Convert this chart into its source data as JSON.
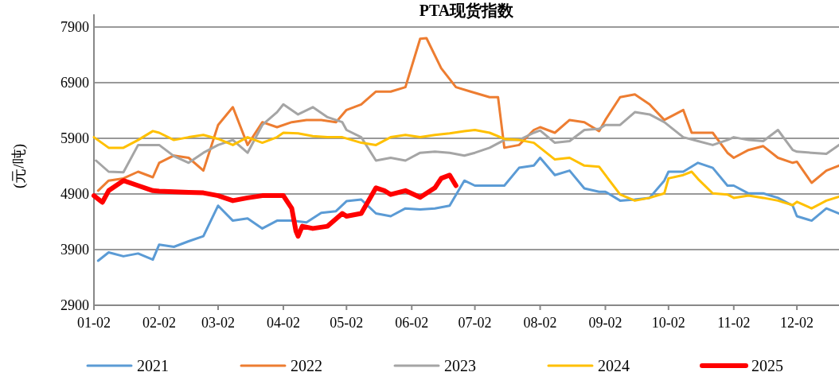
{
  "chart_data": {
    "type": "line",
    "title": "PTA现货指数",
    "ylabel": "(元/吨)",
    "xlim": [
      "--01-02",
      "--12-22"
    ],
    "xticks": [
      {
        "value": "--01-02",
        "label": "01-02"
      },
      {
        "value": "--02-02",
        "label": "02-02"
      },
      {
        "value": "--03-02",
        "label": "03-02"
      },
      {
        "value": "--04-02",
        "label": "04-02"
      },
      {
        "value": "--05-02",
        "label": "05-02"
      },
      {
        "value": "--06-02",
        "label": "06-02"
      },
      {
        "value": "--07-02",
        "label": "07-02"
      },
      {
        "value": "--08-02",
        "label": "08-02"
      },
      {
        "value": "--09-02",
        "label": "09-02"
      },
      {
        "value": "--10-02",
        "label": "10-02"
      },
      {
        "value": "--11-02",
        "label": "11-02"
      },
      {
        "value": "--12-02",
        "label": "12-02"
      }
    ],
    "ylim": [
      2900,
      7900
    ],
    "yticks": [
      2900,
      3900,
      4900,
      5900,
      6900,
      7900
    ],
    "grid": "y",
    "legend": "bottom",
    "marker": "none",
    "line_style": "solid",
    "series": [
      {
        "name": "2021",
        "color": "#5b9bd5",
        "x": [
          "--01-04",
          "--01-09",
          "--01-16",
          "--01-23",
          "--01-30",
          "--02-02",
          "--02-09",
          "--02-16",
          "--02-23",
          "--03-02",
          "--03-09",
          "--03-16",
          "--03-23",
          "--03-30",
          "--04-06",
          "--04-13",
          "--04-20",
          "--04-27",
          "--05-02",
          "--05-09",
          "--05-16",
          "--05-23",
          "--05-30",
          "--06-06",
          "--06-13",
          "--06-20",
          "--06-27",
          "--07-02",
          "--07-09",
          "--07-16",
          "--07-23",
          "--07-30",
          "--08-02",
          "--08-09",
          "--08-16",
          "--08-23",
          "--08-30",
          "--09-02",
          "--09-09",
          "--09-16",
          "--09-23",
          "--09-30",
          "--10-02",
          "--10-09",
          "--10-16",
          "--10-23",
          "--10-30",
          "--11-02",
          "--11-09",
          "--11-16",
          "--11-23",
          "--11-30",
          "--12-02",
          "--12-09",
          "--12-16",
          "--12-22"
        ],
        "values": [
          3700,
          3850,
          3780,
          3830,
          3720,
          3990,
          3950,
          4050,
          4140,
          4690,
          4420,
          4460,
          4280,
          4420,
          4420,
          4390,
          4560,
          4590,
          4770,
          4800,
          4550,
          4500,
          4640,
          4620,
          4640,
          4690,
          5140,
          5050,
          5050,
          5050,
          5370,
          5410,
          5550,
          5240,
          5320,
          5000,
          4940,
          4940,
          4780,
          4800,
          4830,
          5140,
          5300,
          5300,
          5460,
          5370,
          5050,
          5050,
          4910,
          4910,
          4830,
          4690,
          4500,
          4420,
          4640,
          4550
        ]
      },
      {
        "name": "2022",
        "color": "#ed7d31",
        "x": [
          "--01-04",
          "--01-09",
          "--01-16",
          "--01-23",
          "--01-30",
          "--02-02",
          "--02-09",
          "--02-16",
          "--02-23",
          "--03-02",
          "--03-09",
          "--03-16",
          "--03-23",
          "--03-30",
          "--04-06",
          "--04-13",
          "--04-20",
          "--04-27",
          "--05-02",
          "--05-09",
          "--05-16",
          "--05-23",
          "--05-30",
          "--06-06",
          "--06-09",
          "--06-16",
          "--06-23",
          "--06-30",
          "--07-09",
          "--07-13",
          "--07-16",
          "--07-23",
          "--07-30",
          "--08-02",
          "--08-09",
          "--08-16",
          "--08-23",
          "--08-30",
          "--09-02",
          "--09-09",
          "--09-16",
          "--09-23",
          "--09-30",
          "--10-09",
          "--10-13",
          "--10-16",
          "--10-23",
          "--10-30",
          "--11-02",
          "--11-09",
          "--11-16",
          "--11-23",
          "--11-30",
          "--12-02",
          "--12-09",
          "--12-16",
          "--12-22"
        ],
        "values": [
          4960,
          5140,
          5180,
          5300,
          5200,
          5460,
          5590,
          5550,
          5320,
          6140,
          6460,
          5780,
          6190,
          6100,
          6190,
          6230,
          6230,
          6190,
          6410,
          6510,
          6740,
          6740,
          6820,
          7690,
          7700,
          7160,
          6820,
          6740,
          6640,
          6640,
          5730,
          5780,
          6050,
          6100,
          6000,
          6230,
          6190,
          6030,
          6230,
          6640,
          6690,
          6510,
          6230,
          6410,
          6000,
          6000,
          6000,
          5640,
          5550,
          5690,
          5760,
          5550,
          5460,
          5480,
          5100,
          5320,
          5410
        ]
      },
      {
        "name": "2023",
        "color": "#a5a5a5",
        "x": [
          "--01-03",
          "--01-09",
          "--01-16",
          "--01-23",
          "--01-30",
          "--02-02",
          "--02-09",
          "--02-16",
          "--02-23",
          "--03-02",
          "--03-09",
          "--03-16",
          "--03-23",
          "--03-30",
          "--04-02",
          "--04-09",
          "--04-16",
          "--04-23",
          "--04-30",
          "--05-02",
          "--05-09",
          "--05-16",
          "--05-23",
          "--05-30",
          "--06-06",
          "--06-13",
          "--06-20",
          "--06-27",
          "--07-02",
          "--07-09",
          "--07-16",
          "--07-23",
          "--07-30",
          "--08-02",
          "--08-09",
          "--08-16",
          "--08-23",
          "--08-30",
          "--09-02",
          "--09-09",
          "--09-16",
          "--09-23",
          "--09-30",
          "--10-09",
          "--10-16",
          "--10-23",
          "--10-30",
          "--11-02",
          "--11-09",
          "--11-16",
          "--11-23",
          "--11-30",
          "--12-02",
          "--12-09",
          "--12-16",
          "--12-22"
        ],
        "values": [
          5500,
          5300,
          5290,
          5780,
          5780,
          5780,
          5580,
          5460,
          5640,
          5780,
          5870,
          5640,
          6140,
          6370,
          6510,
          6330,
          6460,
          6280,
          6190,
          6050,
          5920,
          5500,
          5550,
          5500,
          5640,
          5660,
          5640,
          5590,
          5640,
          5730,
          5870,
          5870,
          6000,
          6040,
          5820,
          5850,
          6050,
          6070,
          6140,
          6140,
          6370,
          6330,
          6190,
          5920,
          5850,
          5780,
          5870,
          5920,
          5870,
          5850,
          6050,
          5690,
          5660,
          5640,
          5620,
          5780
        ]
      },
      {
        "name": "2024",
        "color": "#ffc000",
        "x": [
          "--01-02",
          "--01-09",
          "--01-16",
          "--01-23",
          "--01-30",
          "--02-02",
          "--02-09",
          "--02-16",
          "--02-23",
          "--03-02",
          "--03-09",
          "--03-16",
          "--03-23",
          "--03-30",
          "--04-02",
          "--04-09",
          "--04-16",
          "--04-23",
          "--04-30",
          "--05-09",
          "--05-16",
          "--05-23",
          "--05-30",
          "--06-06",
          "--06-13",
          "--06-20",
          "--06-27",
          "--07-02",
          "--07-09",
          "--07-16",
          "--07-23",
          "--07-30",
          "--08-02",
          "--08-09",
          "--08-16",
          "--08-23",
          "--08-30",
          "--09-02",
          "--09-09",
          "--09-16",
          "--09-23",
          "--09-30",
          "--10-02",
          "--10-09",
          "--10-13",
          "--10-16",
          "--10-23",
          "--10-30",
          "--11-02",
          "--11-09",
          "--11-16",
          "--11-23",
          "--11-30",
          "--12-02",
          "--12-09",
          "--12-16",
          "--12-22"
        ],
        "values": [
          5920,
          5730,
          5730,
          5870,
          6030,
          6000,
          5870,
          5920,
          5960,
          5890,
          5780,
          5920,
          5820,
          5920,
          6000,
          5990,
          5940,
          5920,
          5920,
          5820,
          5780,
          5920,
          5960,
          5920,
          5960,
          5990,
          6030,
          6050,
          6000,
          5890,
          5870,
          5820,
          5730,
          5520,
          5550,
          5410,
          5390,
          5240,
          4890,
          4780,
          4830,
          4910,
          5180,
          5240,
          5300,
          5170,
          4910,
          4890,
          4830,
          4870,
          4830,
          4780,
          4700,
          4760,
          4640,
          4780,
          4850
        ]
      },
      {
        "name": "2025",
        "color": "#ff0000",
        "x": [
          "--01-02",
          "--01-06",
          "--01-09",
          "--01-16",
          "--01-23",
          "--01-30",
          "--02-02",
          "--02-09",
          "--02-16",
          "--02-23",
          "--03-02",
          "--03-09",
          "--03-16",
          "--03-23",
          "--03-30",
          "--04-02",
          "--04-06",
          "--04-08",
          "--04-09",
          "--04-11",
          "--04-16",
          "--04-23",
          "--04-30",
          "--05-02",
          "--05-09",
          "--05-16",
          "--05-20",
          "--05-23",
          "--05-30",
          "--06-06",
          "--06-13",
          "--06-16",
          "--06-20",
          "--06-23"
        ],
        "values": [
          4870,
          4750,
          4960,
          5140,
          5050,
          4960,
          4950,
          4940,
          4930,
          4920,
          4870,
          4780,
          4830,
          4870,
          4870,
          4870,
          4640,
          4230,
          4140,
          4320,
          4280,
          4320,
          4550,
          4500,
          4550,
          5010,
          4960,
          4890,
          4960,
          4840,
          5010,
          5180,
          5240,
          5050
        ]
      }
    ]
  }
}
